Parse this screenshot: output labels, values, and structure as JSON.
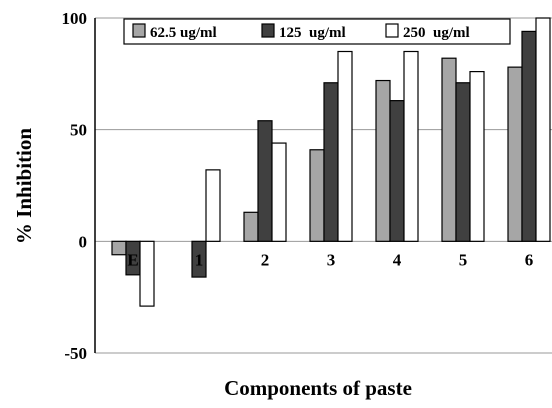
{
  "chart_data": {
    "type": "bar",
    "categories": [
      "E",
      "1",
      "2",
      "3",
      "4",
      "5",
      "6"
    ],
    "series": [
      {
        "name": "62.5 ug/ml",
        "values": [
          -6,
          0,
          13,
          41,
          72,
          82,
          78
        ],
        "color": "#a6a6a6"
      },
      {
        "name": "125  ug/ml",
        "values": [
          -15,
          -16,
          54,
          71,
          63,
          71,
          94
        ],
        "color": "#404040"
      },
      {
        "name": "250  ug/ml",
        "values": [
          -29,
          32,
          44,
          85,
          85,
          76,
          100
        ],
        "color": "#ffffff"
      }
    ],
    "xlabel": "Components of paste",
    "ylabel": "% Inhibition",
    "ylim": [
      -50,
      100
    ],
    "yticks": [
      "-50",
      "0",
      "50",
      "100"
    ],
    "grid": "horizontal",
    "legend": "top"
  }
}
